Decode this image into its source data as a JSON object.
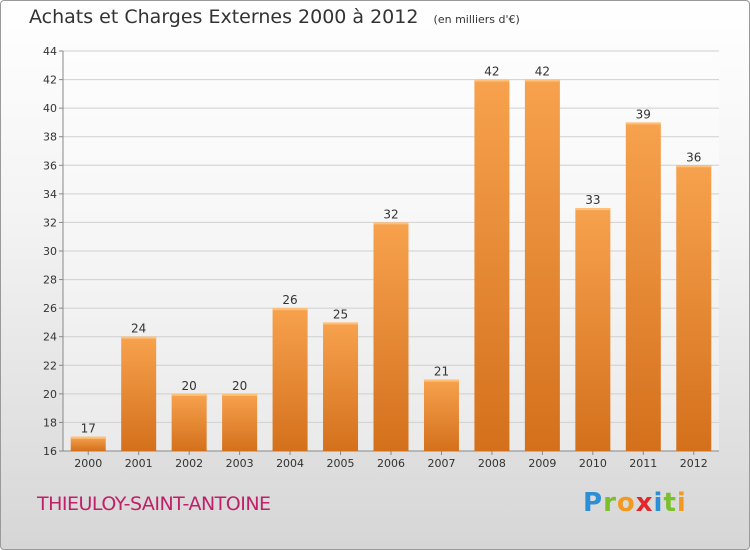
{
  "header": {
    "title": "Achats et Charges Externes 2000 à 2012",
    "subtitle": "(en milliers d'€)"
  },
  "footer": {
    "commune": "THIEULOY-SAINT-ANTOINE",
    "logo_letters": [
      "P",
      "r",
      "o",
      "x",
      "i",
      "t",
      "i"
    ],
    "logo_colors": [
      "#2a8fd6",
      "#7bbf2a",
      "#f29a1f",
      "#e2282a",
      "#2a8fd6",
      "#7bbf2a",
      "#f29a1f"
    ]
  },
  "chart_data": {
    "type": "bar",
    "title": "Achats et Charges Externes 2000 à 2012",
    "subtitle": "(en milliers d'€)",
    "categories": [
      "2000",
      "2001",
      "2002",
      "2003",
      "2004",
      "2005",
      "2006",
      "2007",
      "2008",
      "2009",
      "2010",
      "2011",
      "2012"
    ],
    "values": [
      17,
      24,
      20,
      20,
      26,
      25,
      32,
      21,
      42,
      42,
      33,
      39,
      36
    ],
    "ylim": [
      16,
      44
    ],
    "yticks": [
      16,
      18,
      20,
      22,
      24,
      26,
      28,
      30,
      32,
      34,
      36,
      38,
      40,
      42,
      44
    ],
    "grid": true,
    "bar_color_top": "#f7a24e",
    "bar_color_bottom": "#d4701c"
  }
}
